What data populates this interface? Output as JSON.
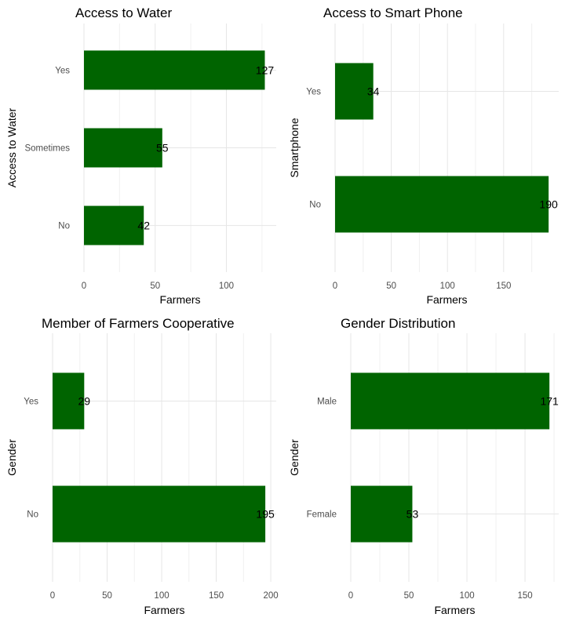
{
  "chart_data": [
    {
      "type": "bar",
      "orientation": "horizontal",
      "title": "Access to Water",
      "xlabel": "Farmers",
      "ylabel": "Access to Water",
      "categories": [
        "No",
        "Sometimes",
        "Yes"
      ],
      "values": [
        42,
        55,
        127
      ],
      "xlim": [
        0,
        135
      ],
      "xticks": [
        0,
        50,
        100
      ],
      "bar_color": "#006400",
      "grid": true
    },
    {
      "type": "bar",
      "orientation": "horizontal",
      "title": "Access to Smart Phone",
      "xlabel": "Farmers",
      "ylabel": "Smartphone",
      "categories": [
        "No",
        "Yes"
      ],
      "values": [
        190,
        34
      ],
      "xlim": [
        0,
        199
      ],
      "xticks": [
        0,
        50,
        100,
        150
      ],
      "bar_color": "#006400",
      "grid": true
    },
    {
      "type": "bar",
      "orientation": "horizontal",
      "title": "Member of Farmers Cooperative",
      "xlabel": "Farmers",
      "ylabel": "Gender",
      "categories": [
        "No",
        "Yes"
      ],
      "values": [
        195,
        29
      ],
      "xlim": [
        0,
        205
      ],
      "xticks": [
        0,
        50,
        100,
        150,
        200
      ],
      "bar_color": "#006400",
      "grid": true
    },
    {
      "type": "bar",
      "orientation": "horizontal",
      "title": "Gender Distribution",
      "xlabel": "Farmers",
      "ylabel": "Gender",
      "categories": [
        "Female",
        "Male"
      ],
      "values": [
        53,
        171
      ],
      "xlim": [
        0,
        179
      ],
      "xticks": [
        0,
        50,
        100,
        150
      ],
      "bar_color": "#006400",
      "grid": true
    }
  ]
}
